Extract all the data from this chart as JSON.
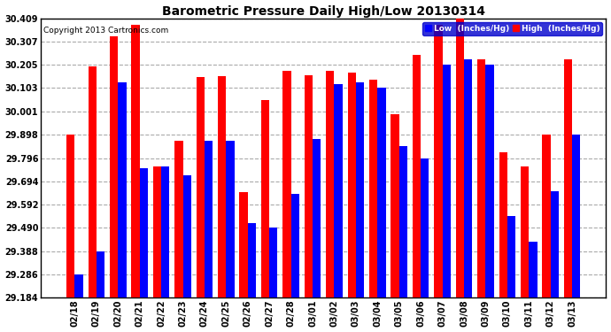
{
  "title": "Barometric Pressure Daily High/Low 20130314",
  "copyright": "Copyright 2013 Cartronics.com",
  "legend_low": "Low  (Inches/Hg)",
  "legend_high": "High  (Inches/Hg)",
  "dates": [
    "02/18",
    "02/19",
    "02/20",
    "02/21",
    "02/22",
    "02/23",
    "02/24",
    "02/25",
    "02/26",
    "02/27",
    "02/28",
    "03/01",
    "03/02",
    "03/03",
    "03/04",
    "03/05",
    "03/06",
    "03/07",
    "03/08",
    "03/09",
    "03/10",
    "03/11",
    "03/12",
    "03/13"
  ],
  "low_values": [
    29.286,
    29.388,
    30.13,
    29.75,
    29.76,
    29.72,
    29.87,
    29.87,
    29.51,
    29.49,
    29.638,
    29.88,
    30.12,
    30.13,
    30.103,
    29.85,
    29.796,
    30.205,
    30.23,
    30.205,
    29.54,
    29.43,
    29.65,
    29.898
  ],
  "high_values": [
    29.9,
    30.2,
    30.33,
    30.38,
    29.76,
    29.87,
    30.15,
    30.155,
    29.645,
    30.05,
    30.18,
    30.16,
    30.18,
    30.17,
    30.14,
    29.99,
    30.25,
    30.38,
    30.409,
    30.23,
    29.82,
    29.76,
    29.9,
    30.23
  ],
  "low_color": "#0000ff",
  "high_color": "#ff0000",
  "bg_color": "#ffffff",
  "grid_color": "#aaaaaa",
  "ylim_min": 29.184,
  "ylim_max": 30.409,
  "yticks": [
    29.184,
    29.286,
    29.388,
    29.49,
    29.592,
    29.694,
    29.796,
    29.898,
    30.001,
    30.103,
    30.205,
    30.307,
    30.409
  ],
  "bar_bottom": 29.184
}
